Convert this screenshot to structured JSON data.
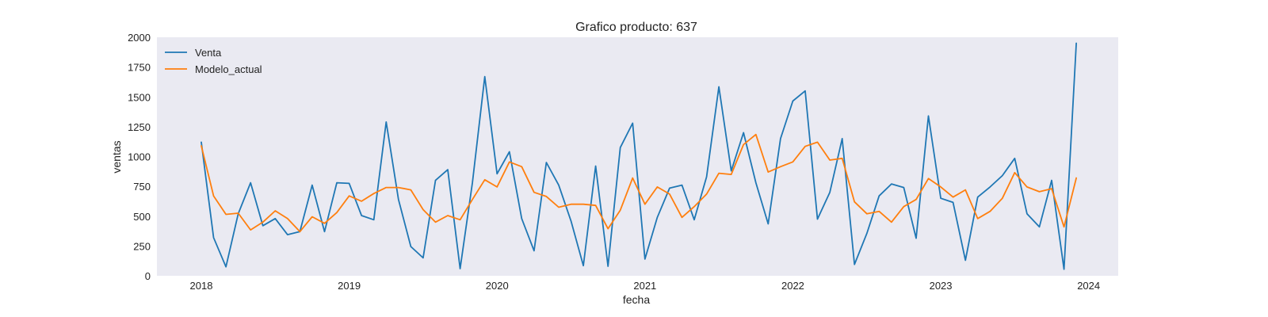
{
  "chart_data": {
    "type": "line",
    "title": "Grafico producto: 637",
    "xlabel": "fecha",
    "ylabel": "ventas",
    "xlim": [
      2017.7,
      2024.2
    ],
    "ylim": [
      0,
      2000
    ],
    "x_ticks": [
      2018,
      2019,
      2020,
      2021,
      2022,
      2023,
      2024
    ],
    "y_ticks": [
      0,
      250,
      500,
      750,
      1000,
      1250,
      1500,
      1750,
      2000
    ],
    "grid": false,
    "background": "#eaeaf2",
    "legend": "top-left",
    "x": [
      "2018-01",
      "2018-02",
      "2018-03",
      "2018-04",
      "2018-05",
      "2018-06",
      "2018-07",
      "2018-08",
      "2018-09",
      "2018-10",
      "2018-11",
      "2018-12",
      "2019-01",
      "2019-02",
      "2019-03",
      "2019-04",
      "2019-05",
      "2019-06",
      "2019-07",
      "2019-08",
      "2019-09",
      "2019-10",
      "2019-11",
      "2019-12",
      "2020-01",
      "2020-02",
      "2020-03",
      "2020-04",
      "2020-05",
      "2020-06",
      "2020-07",
      "2020-08",
      "2020-09",
      "2020-10",
      "2020-11",
      "2020-12",
      "2021-01",
      "2021-02",
      "2021-03",
      "2021-04",
      "2021-05",
      "2021-06",
      "2021-07",
      "2021-08",
      "2021-09",
      "2021-10",
      "2021-11",
      "2021-12",
      "2022-01",
      "2022-02",
      "2022-03",
      "2022-04",
      "2022-05",
      "2022-06",
      "2022-07",
      "2022-08",
      "2022-09",
      "2022-10",
      "2022-11",
      "2022-12",
      "2023-01",
      "2023-02",
      "2023-03",
      "2023-04",
      "2023-05",
      "2023-06",
      "2023-07",
      "2023-08",
      "2023-09",
      "2023-10",
      "2023-11",
      "2023-12"
    ],
    "series": [
      {
        "name": "Venta",
        "color": "#1f77b4",
        "values": [
          1120,
          320,
          75,
          520,
          780,
          420,
          480,
          345,
          370,
          760,
          370,
          780,
          775,
          505,
          470,
          1290,
          640,
          245,
          150,
          800,
          890,
          60,
          780,
          1670,
          855,
          1040,
          480,
          210,
          950,
          760,
          460,
          85,
          920,
          80,
          1075,
          1280,
          140,
          490,
          735,
          760,
          470,
          830,
          1585,
          880,
          1200,
          780,
          435,
          1150,
          1465,
          1550,
          475,
          700,
          1150,
          95,
          355,
          670,
          770,
          740,
          315,
          1340,
          650,
          615,
          130,
          660,
          745,
          840,
          985,
          520,
          410,
          800,
          55,
          1950
        ]
      },
      {
        "name": "Modelo_actual",
        "color": "#ff7f0e",
        "values": [
          1090,
          670,
          515,
          525,
          385,
          450,
          545,
          480,
          370,
          495,
          440,
          530,
          670,
          625,
          690,
          740,
          740,
          720,
          555,
          450,
          505,
          470,
          640,
          805,
          745,
          955,
          915,
          700,
          665,
          575,
          600,
          600,
          590,
          395,
          550,
          820,
          600,
          745,
          685,
          490,
          580,
          685,
          860,
          850,
          1100,
          1185,
          870,
          915,
          955,
          1085,
          1120,
          970,
          985,
          620,
          520,
          540,
          450,
          580,
          640,
          815,
          745,
          660,
          720,
          480,
          540,
          650,
          865,
          745,
          705,
          730,
          410,
          820
        ]
      }
    ]
  }
}
